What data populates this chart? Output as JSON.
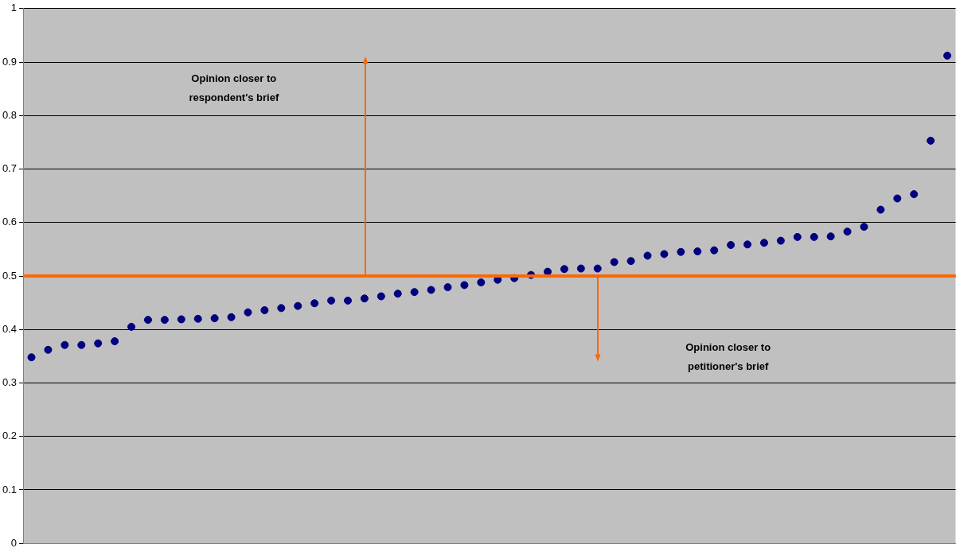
{
  "chart_data": {
    "type": "scatter",
    "categories": [
      null,
      null,
      null,
      null,
      null,
      null,
      null,
      null,
      null,
      null,
      null,
      null,
      null,
      null,
      null,
      null,
      null,
      null,
      null,
      null,
      null,
      null,
      null,
      null,
      null,
      null,
      null,
      null,
      null,
      null,
      null,
      null,
      null,
      null,
      null,
      null,
      null,
      null,
      null,
      null,
      null,
      null,
      null,
      null,
      null,
      null,
      null,
      null,
      null,
      null,
      null,
      null,
      null,
      null,
      null,
      null
    ],
    "series": [
      {
        "color": "#000080",
        "values": [
          0.348,
          0.362,
          0.371,
          0.371,
          0.374,
          0.378,
          0.405,
          0.418,
          0.418,
          0.419,
          0.42,
          0.421,
          0.423,
          0.432,
          0.436,
          0.44,
          0.444,
          0.449,
          0.454,
          0.454,
          0.458,
          0.462,
          0.467,
          0.47,
          0.474,
          0.479,
          0.483,
          0.488,
          0.493,
          0.496,
          0.502,
          0.508,
          0.513,
          0.514,
          0.514,
          0.526,
          0.528,
          0.538,
          0.541,
          0.545,
          0.546,
          0.548,
          0.558,
          0.559,
          0.562,
          0.566,
          0.573,
          0.573,
          0.574,
          0.583,
          0.592,
          0.624,
          0.645,
          0.653,
          0.753,
          0.912
        ]
      }
    ],
    "ylim": [
      0,
      1
    ],
    "yticks": [
      0,
      0.1,
      0.2,
      0.3,
      0.4,
      0.5,
      0.6,
      0.7,
      0.8,
      0.9,
      1
    ],
    "ref_lines": [
      {
        "axis": "y",
        "value": 0.5,
        "color": "#ff6600"
      }
    ],
    "annotations": [
      "Opinion closer to respondent's brief",
      "Opinion closer to petitioner's brief"
    ],
    "grid": "y",
    "legend": false,
    "marker": "circle",
    "tick_labels": "y"
  }
}
